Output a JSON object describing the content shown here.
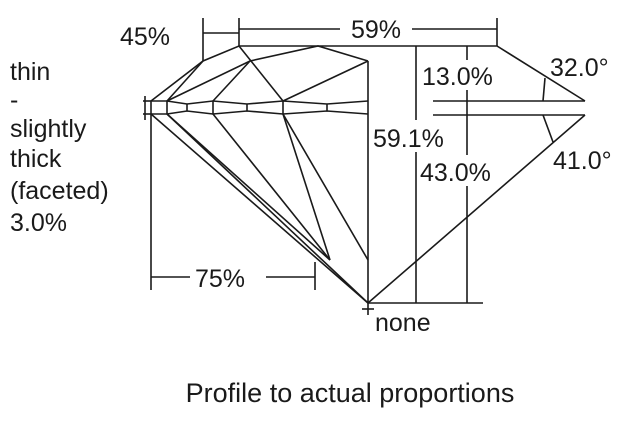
{
  "girdle": {
    "lines": [
      "thin",
      "-",
      "slightly",
      "thick",
      "(faceted)",
      "3.0%"
    ]
  },
  "star_length": "45%",
  "table": "59%",
  "crown_height": "13.0%",
  "crown_angle": "32.0°",
  "total_depth": "59.1%",
  "pavilion_depth": "43.0%",
  "pavilion_angle": "41.0°",
  "lower_half": "75%",
  "culet": "none",
  "caption": "Profile to actual proportions"
}
